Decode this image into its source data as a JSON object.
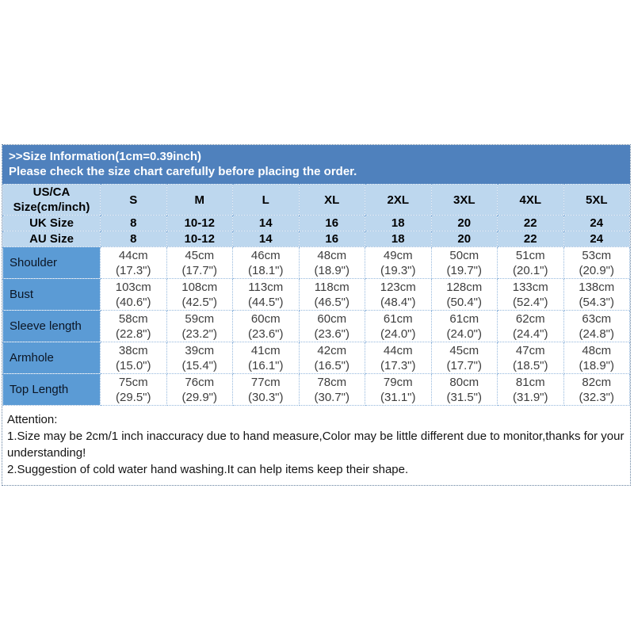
{
  "colors": {
    "banner_bg": "#4f81bd",
    "banner_text": "#ffffff",
    "header_row_bg": "#bdd7ee",
    "measure_label_bg": "#5b9bd5",
    "dotted_border": "#95b8dd",
    "value_text": "#3d3d3d"
  },
  "banner": {
    "line1": ">>Size Information(1cm=0.39inch)",
    "line2": "Please check the size chart carefully before placing the order."
  },
  "size_table": {
    "corner_line1": "US/CA",
    "corner_line2": "Size(cm/inch)",
    "size_headers": [
      "S",
      "M",
      "L",
      "XL",
      "2XL",
      "3XL",
      "4XL",
      "5XL"
    ],
    "region_rows": [
      {
        "label": "UK Size",
        "values": [
          "8",
          "10-12",
          "14",
          "16",
          "18",
          "20",
          "22",
          "24"
        ]
      },
      {
        "label": "AU Size",
        "values": [
          "8",
          "10-12",
          "14",
          "16",
          "18",
          "20",
          "22",
          "24"
        ]
      }
    ],
    "measurement_rows": [
      {
        "label": "Shoulder",
        "cm": [
          "44cm",
          "45cm",
          "46cm",
          "48cm",
          "49cm",
          "50cm",
          "51cm",
          "53cm"
        ],
        "inch": [
          "(17.3\")",
          "(17.7\")",
          "(18.1\")",
          "(18.9\")",
          "(19.3\")",
          "(19.7\")",
          "(20.1\")",
          "(20.9\")"
        ]
      },
      {
        "label": "Bust",
        "cm": [
          "103cm",
          "108cm",
          "113cm",
          "118cm",
          "123cm",
          "128cm",
          "133cm",
          "138cm"
        ],
        "inch": [
          "(40.6\")",
          "(42.5\")",
          "(44.5\")",
          "(46.5\")",
          "(48.4\")",
          "(50.4\")",
          "(52.4\")",
          "(54.3\")"
        ]
      },
      {
        "label": "Sleeve length",
        "cm": [
          "58cm",
          "59cm",
          "60cm",
          "60cm",
          "61cm",
          "61cm",
          "62cm",
          "63cm"
        ],
        "inch": [
          "(22.8\")",
          "(23.2\")",
          "(23.6\")",
          "(23.6\")",
          "(24.0\")",
          "(24.0\")",
          "(24.4\")",
          "(24.8\")"
        ]
      },
      {
        "label": "Armhole",
        "cm": [
          "38cm",
          "39cm",
          "41cm",
          "42cm",
          "44cm",
          "45cm",
          "47cm",
          "48cm"
        ],
        "inch": [
          "(15.0\")",
          "(15.4\")",
          "(16.1\")",
          "(16.5\")",
          "(17.3\")",
          "(17.7\")",
          "(18.5\")",
          "(18.9\")"
        ]
      },
      {
        "label": "Top Length",
        "cm": [
          "75cm",
          "76cm",
          "77cm",
          "78cm",
          "79cm",
          "80cm",
          "81cm",
          "82cm"
        ],
        "inch": [
          "(29.5\")",
          "(29.9\")",
          "(30.3\")",
          "(30.7\")",
          "(31.1\")",
          "(31.5\")",
          "(31.9\")",
          "(32.3\")"
        ]
      }
    ]
  },
  "attention": {
    "title": "Attention:",
    "note1": "1.Size may be 2cm/1 inch inaccuracy due to hand measure,Color may be little different due to monitor,thanks for your understanding!",
    "note2": "2.Suggestion of cold water hand washing.It can help items keep their shape."
  }
}
